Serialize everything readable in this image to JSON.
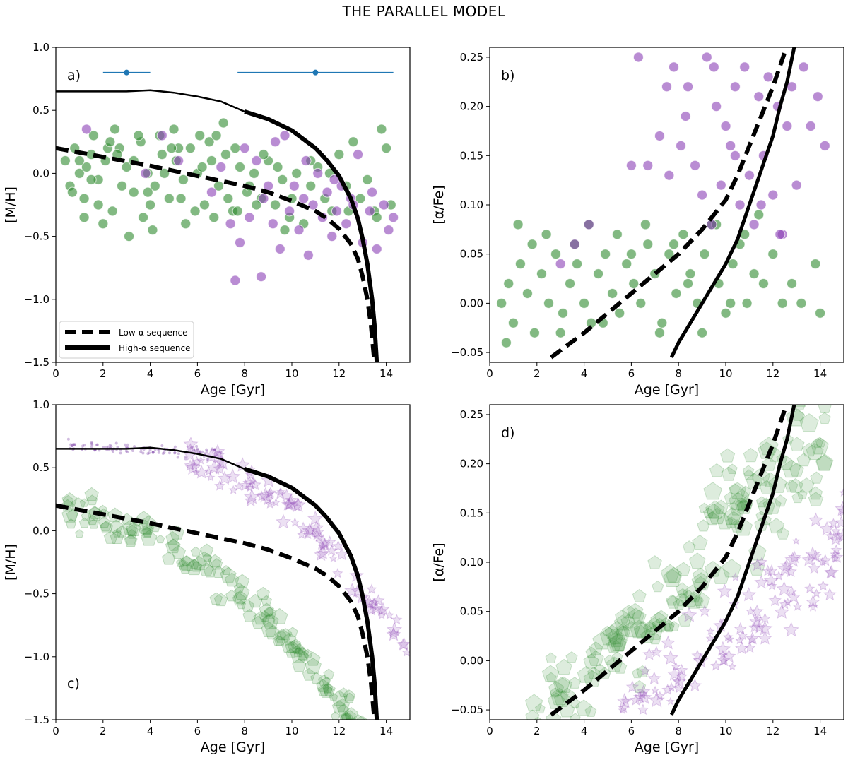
{
  "title": "THE PARALLEL MODEL",
  "chart_data": [
    {
      "type": "scatter",
      "panel_label": "a)",
      "xlabel": "Age [Gyr]",
      "ylabel": "[M/H]",
      "xlim": [
        0,
        15
      ],
      "ylim": [
        -1.5,
        1.0
      ],
      "xticks": [
        "0",
        "2",
        "4",
        "6",
        "8",
        "10",
        "12",
        "14"
      ],
      "yticks": [
        "1.0",
        "0.5",
        "0.0",
        "−0.5",
        "−1.0",
        "−1.5"
      ],
      "legend": {
        "placement": "lower-left",
        "entries": [
          "Low-α sequence",
          "High-α sequence"
        ]
      },
      "errorbars": [
        {
          "x": 3.0,
          "y": 0.8,
          "xerr": 1.0
        },
        {
          "x": 11.0,
          "y": 0.8,
          "xerr": 3.3
        }
      ],
      "series": [
        {
          "kind": "green_scatter",
          "color": "#2e8b2e",
          "x": [
            0.4,
            0.6,
            0.8,
            1.0,
            1.2,
            1.5,
            1.8,
            2.1,
            2.4,
            2.7,
            3.0,
            3.3,
            3.6,
            3.9,
            4.2,
            4.5,
            4.8,
            5.1,
            5.4,
            5.7,
            6.0,
            6.3,
            6.6,
            6.9,
            7.2,
            7.5,
            7.8,
            8.1,
            8.4,
            8.7,
            9.0,
            9.3,
            9.6,
            9.9,
            10.2,
            10.5,
            10.8,
            11.1,
            11.4,
            11.7,
            12.0,
            12.3,
            12.6,
            12.9,
            13.2,
            13.5,
            13.8,
            14.0,
            1.2,
            1.6,
            2.0,
            2.5,
            3.1,
            3.5,
            4.1,
            4.4,
            5.0,
            5.5,
            6.1,
            6.7,
            7.1,
            7.7,
            8.2,
            8.8,
            9.4,
            10.0,
            1.3,
            1.8,
            2.2,
            2.8,
            3.3,
            3.9,
            4.6,
            5.2,
            5.9,
            6.5,
            7.3,
            0.7,
            1.0,
            1.5,
            2.3,
            2.6,
            3.7,
            4.0,
            4.9,
            5.3,
            6.2,
            6.8,
            7.6,
            8.5,
            9.7,
            10.8,
            11.6,
            12.4,
            13.6,
            14.2
          ],
          "y": [
            0.1,
            -0.1,
            0.2,
            0.0,
            -0.2,
            0.15,
            -0.05,
            0.1,
            -0.3,
            0.2,
            0.05,
            -0.15,
            0.25,
            0.0,
            -0.1,
            0.15,
            -0.2,
            0.1,
            -0.05,
            0.2,
            0.0,
            -0.25,
            0.1,
            -0.1,
            0.15,
            -0.3,
            0.05,
            -0.15,
            0.0,
            -0.2,
            0.1,
            -0.25,
            -0.05,
            -0.35,
            0.0,
            -0.4,
            -0.1,
            0.05,
            -0.2,
            -0.3,
            0.15,
            -0.1,
            0.25,
            -0.2,
            -0.05,
            -0.3,
            0.35,
            0.2,
            -0.35,
            0.3,
            -0.4,
            0.35,
            -0.5,
            0.3,
            -0.45,
            0.3,
            0.35,
            -0.4,
            0.3,
            -0.35,
            0.4,
            -0.3,
            -0.1,
            0.15,
            0.05,
            -0.2,
            0.05,
            -0.25,
            0.2,
            -0.1,
            0.1,
            -0.15,
            0.0,
            0.2,
            -0.3,
            0.25,
            -0.2,
            -0.15,
            0.1,
            -0.05,
            0.25,
            0.15,
            -0.35,
            -0.25,
            0.2,
            -0.2,
            0.05,
            0.3,
            0.2,
            -0.25,
            -0.45,
            0.1,
            0.0,
            -0.3,
            -0.35,
            -0.25
          ]
        },
        {
          "kind": "purple_scatter",
          "color": "#8b3fb5",
          "x": [
            1.3,
            3.8,
            4.5,
            5.2,
            6.6,
            7.0,
            7.4,
            7.8,
            8.0,
            8.2,
            8.5,
            8.8,
            9.0,
            9.2,
            9.5,
            9.7,
            9.9,
            10.1,
            10.3,
            10.5,
            10.7,
            10.9,
            11.1,
            11.3,
            11.5,
            11.7,
            11.9,
            12.1,
            12.3,
            12.5,
            12.8,
            13.0,
            13.3,
            13.6,
            13.9,
            14.1,
            14.3,
            9.3,
            10.6,
            11.8,
            12.6,
            13.4,
            7.6,
            8.7
          ],
          "y": [
            0.35,
            0.0,
            0.3,
            0.1,
            -0.15,
            0.05,
            -0.4,
            -0.55,
            0.2,
            -0.35,
            0.1,
            -0.2,
            -0.1,
            -0.4,
            -0.6,
            0.3,
            -0.3,
            -0.1,
            -0.45,
            -0.2,
            -0.65,
            -0.25,
            0.0,
            -0.35,
            -0.15,
            -0.5,
            -0.3,
            -0.1,
            -0.4,
            -0.2,
            0.15,
            -0.55,
            -0.3,
            -0.6,
            -0.25,
            -0.45,
            -0.35,
            0.25,
            0.1,
            -0.05,
            -0.25,
            -0.15,
            -0.85,
            -0.82
          ]
        },
        {
          "kind": "low_alpha_sequence",
          "style": "dashed",
          "x": [
            0,
            2,
            4,
            6,
            8,
            9,
            10,
            11,
            11.5,
            12,
            12.5,
            12.8,
            13.0,
            13.2,
            13.35,
            13.5
          ],
          "y": [
            0.2,
            0.13,
            0.06,
            -0.02,
            -0.1,
            -0.15,
            -0.22,
            -0.3,
            -0.36,
            -0.44,
            -0.56,
            -0.68,
            -0.82,
            -1.0,
            -1.2,
            -1.5
          ]
        },
        {
          "kind": "high_alpha_sequence",
          "style": "solid",
          "x": [
            0,
            2,
            3,
            4,
            5,
            6,
            7,
            8,
            9,
            10,
            11,
            11.5,
            12,
            12.5,
            12.8,
            13.0,
            13.2,
            13.4,
            13.5,
            13.6
          ],
          "y": [
            0.65,
            0.65,
            0.65,
            0.66,
            0.64,
            0.61,
            0.57,
            0.49,
            0.43,
            0.34,
            0.2,
            0.1,
            -0.02,
            -0.2,
            -0.36,
            -0.52,
            -0.72,
            -1.0,
            -1.2,
            -1.5
          ]
        }
      ]
    },
    {
      "type": "scatter",
      "panel_label": "b)",
      "xlabel": "Age [Gyr]",
      "ylabel": "[α/Fe]",
      "xlim": [
        0,
        15
      ],
      "ylim": [
        -0.06,
        0.26
      ],
      "xticks": [
        "0",
        "2",
        "4",
        "6",
        "8",
        "10",
        "12",
        "14"
      ],
      "yticks": [
        "0.25",
        "0.20",
        "0.15",
        "0.10",
        "0.05",
        "0.00",
        "−0.05"
      ],
      "series": [
        {
          "kind": "green_scatter",
          "color": "#2e8b2e",
          "x": [
            0.5,
            0.8,
            1.0,
            1.3,
            1.6,
            1.9,
            2.2,
            2.5,
            2.8,
            3.1,
            3.4,
            3.7,
            4.0,
            4.3,
            4.6,
            4.9,
            5.2,
            5.5,
            5.8,
            6.1,
            6.4,
            6.7,
            7.0,
            7.3,
            7.6,
            7.9,
            8.2,
            8.5,
            8.8,
            9.1,
            9.4,
            9.7,
            10.0,
            10.3,
            10.6,
            10.9,
            11.2,
            11.6,
            12.0,
            12.4,
            12.8,
            13.2,
            13.8,
            14.0,
            0.7,
            1.2,
            1.8,
            2.4,
            3.0,
            3.6,
            4.2,
            4.8,
            5.4,
            6.0,
            6.6,
            7.2,
            7.8,
            8.4,
            9.0,
            9.6,
            10.2,
            10.8,
            11.4
          ],
          "y": [
            0.0,
            0.02,
            -0.02,
            0.04,
            0.01,
            -0.03,
            0.03,
            0.0,
            0.05,
            -0.01,
            0.02,
            0.04,
            0.0,
            -0.02,
            0.03,
            0.05,
            0.01,
            -0.01,
            0.04,
            0.02,
            0.0,
            0.06,
            0.03,
            -0.02,
            0.05,
            0.01,
            0.07,
            0.03,
            0.0,
            0.05,
            0.08,
            0.02,
            -0.01,
            0.04,
            0.06,
            0.0,
            0.03,
            0.02,
            0.05,
            0.0,
            0.02,
            0.0,
            0.04,
            -0.01,
            -0.04,
            0.08,
            0.06,
            0.07,
            -0.03,
            0.06,
            0.08,
            -0.02,
            0.07,
            0.05,
            0.08,
            -0.03,
            0.06,
            0.02,
            -0.03,
            0.08,
            0.0,
            0.07,
            0.09
          ]
        },
        {
          "kind": "purple_scatter",
          "color": "#8b3fb5",
          "x": [
            3.0,
            3.6,
            4.2,
            6.0,
            6.3,
            6.7,
            7.2,
            7.5,
            7.8,
            8.1,
            8.4,
            8.7,
            9.0,
            9.2,
            9.4,
            9.6,
            9.8,
            10.0,
            10.2,
            10.4,
            10.6,
            10.8,
            11.0,
            11.2,
            11.4,
            11.6,
            11.8,
            12.0,
            12.2,
            12.4,
            12.6,
            12.8,
            13.0,
            13.3,
            13.6,
            13.9,
            14.2,
            7.6,
            8.3,
            9.5,
            10.4,
            11.5,
            12.3
          ],
          "y": [
            0.04,
            0.06,
            0.08,
            0.14,
            0.25,
            0.14,
            0.17,
            0.22,
            0.24,
            0.16,
            0.22,
            0.14,
            0.11,
            0.25,
            0.08,
            0.2,
            0.12,
            0.18,
            0.16,
            0.22,
            0.1,
            0.24,
            0.13,
            0.08,
            0.21,
            0.15,
            0.23,
            0.11,
            0.2,
            0.07,
            0.18,
            0.22,
            0.12,
            0.24,
            0.18,
            0.21,
            0.16,
            0.13,
            0.19,
            0.24,
            0.15,
            0.1,
            0.07
          ]
        },
        {
          "kind": "low_alpha_sequence",
          "style": "dashed",
          "x": [
            2.6,
            4.0,
            5.0,
            6.0,
            7.0,
            8.0,
            9.0,
            10.0,
            10.5,
            11.0,
            11.5,
            12.0,
            12.5
          ],
          "y": [
            -0.055,
            -0.03,
            -0.01,
            0.01,
            0.03,
            0.05,
            0.075,
            0.105,
            0.13,
            0.16,
            0.19,
            0.22,
            0.255
          ]
        },
        {
          "kind": "high_alpha_sequence",
          "style": "solid",
          "x": [
            7.7,
            8.0,
            8.5,
            9.0,
            9.5,
            10.0,
            10.5,
            11.0,
            11.5,
            12.0,
            12.3,
            12.6,
            12.9
          ],
          "y": [
            -0.055,
            -0.04,
            -0.02,
            0.0,
            0.02,
            0.04,
            0.065,
            0.1,
            0.135,
            0.17,
            0.2,
            0.225,
            0.26
          ]
        }
      ]
    },
    {
      "type": "scatter",
      "panel_label": "c)",
      "xlabel": "Age [Gyr]",
      "ylabel": "[M/H]",
      "xlim": [
        0,
        15
      ],
      "ylim": [
        -1.5,
        1.0
      ],
      "xticks": [
        "0",
        "2",
        "4",
        "6",
        "8",
        "10",
        "12",
        "14"
      ],
      "yticks": [
        "1.0",
        "0.5",
        "0.0",
        "−0.5",
        "−1.0",
        "−1.5"
      ],
      "series": [
        {
          "kind": "low_alpha_sequence",
          "style": "dashed",
          "x": [
            0,
            2,
            4,
            6,
            8,
            9,
            10,
            11,
            11.5,
            12,
            12.5,
            12.8,
            13.0,
            13.2,
            13.35,
            13.5
          ],
          "y": [
            0.2,
            0.13,
            0.06,
            -0.02,
            -0.1,
            -0.15,
            -0.22,
            -0.3,
            -0.36,
            -0.44,
            -0.56,
            -0.68,
            -0.82,
            -1.0,
            -1.2,
            -1.5
          ]
        },
        {
          "kind": "high_alpha_sequence",
          "style": "solid",
          "x": [
            0,
            2,
            3,
            4,
            5,
            6,
            7,
            8,
            9,
            10,
            11,
            11.5,
            12,
            12.5,
            12.8,
            13.0,
            13.2,
            13.4,
            13.5,
            13.6
          ],
          "y": [
            0.65,
            0.65,
            0.65,
            0.66,
            0.64,
            0.61,
            0.57,
            0.49,
            0.43,
            0.34,
            0.2,
            0.1,
            -0.02,
            -0.2,
            -0.36,
            -0.52,
            -0.72,
            -1.0,
            -1.2,
            -1.5
          ]
        }
      ]
    },
    {
      "type": "scatter",
      "panel_label": "d)",
      "xlabel": "Age [Gyr]",
      "ylabel": "[α/Fe]",
      "xlim": [
        0,
        15
      ],
      "ylim": [
        -0.06,
        0.26
      ],
      "xticks": [
        "0",
        "2",
        "4",
        "6",
        "8",
        "10",
        "12",
        "14"
      ],
      "yticks": [
        "0.25",
        "0.20",
        "0.15",
        "0.10",
        "0.05",
        "0.00",
        "−0.05"
      ],
      "series": [
        {
          "kind": "low_alpha_sequence",
          "style": "dashed",
          "x": [
            2.6,
            4.0,
            5.0,
            6.0,
            7.0,
            8.0,
            9.0,
            10.0,
            10.5,
            11.0,
            11.5,
            12.0,
            12.5
          ],
          "y": [
            -0.055,
            -0.03,
            -0.01,
            0.01,
            0.03,
            0.05,
            0.075,
            0.105,
            0.13,
            0.16,
            0.19,
            0.22,
            0.255
          ]
        },
        {
          "kind": "high_alpha_sequence",
          "style": "solid",
          "x": [
            7.7,
            8.0,
            8.5,
            9.0,
            9.5,
            10.0,
            10.5,
            11.0,
            11.5,
            12.0,
            12.3,
            12.6,
            12.9
          ],
          "y": [
            -0.055,
            -0.04,
            -0.02,
            0.0,
            0.02,
            0.04,
            0.065,
            0.1,
            0.135,
            0.17,
            0.2,
            0.225,
            0.26
          ]
        }
      ]
    }
  ]
}
